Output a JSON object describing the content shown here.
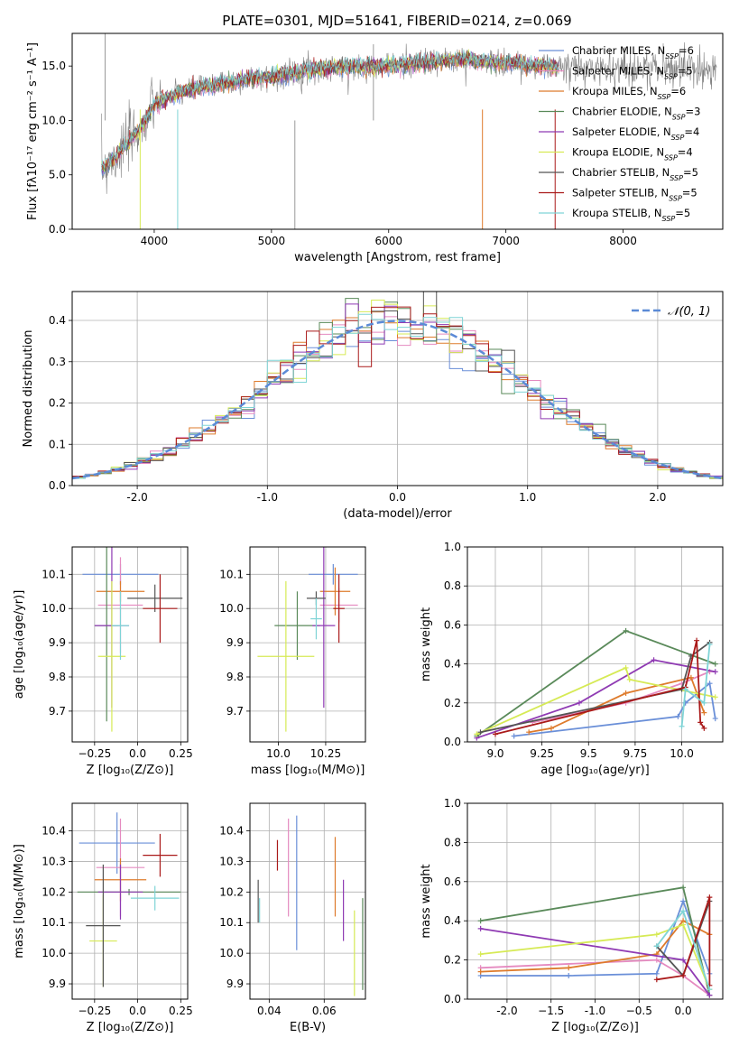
{
  "figure_title": "PLATE=0301, MJD=51641, FIBERID=0214, z=0.069",
  "colors": {
    "Chabrier MILES": "#6a8fd8",
    "Salpeter MILES": "#e58ac0",
    "Kroupa MILES": "#de7b2c",
    "Chabrier ELODIE": "#5a8a5a",
    "Salpeter ELODIE": "#8f3ab3",
    "Kroupa ELODIE": "#d6ea55",
    "Chabrier STELIB": "#555555",
    "Salpeter STELIB": "#aa1a1a",
    "Kroupa STELIB": "#7fd4d6",
    "data": "#808080"
  },
  "chart_data": [
    {
      "id": "spectrum",
      "type": "line",
      "title": "PLATE=0301, MJD=51641, FIBERID=0214, z=0.069",
      "xlabel": "wavelength [Angstrom, rest frame]",
      "ylabel": "Flux [fλ10⁻¹⁷ erg cm⁻² s⁻¹ A⁻¹]",
      "xlim": [
        3300,
        8850
      ],
      "ylim": [
        0,
        18
      ],
      "xticks": [
        4000,
        5000,
        6000,
        7000,
        8000
      ],
      "yticks": [
        0,
        5,
        10,
        15
      ],
      "legend_position": "top-right",
      "legend": [
        "Chabrier MILES, N_SSP=6",
        "Salpeter MILES, N_SSP=5",
        "Kroupa MILES, N_SSP=6",
        "Chabrier ELODIE, N_SSP=3",
        "Salpeter ELODIE, N_SSP=4",
        "Kroupa ELODIE, N_SSP=4",
        "Chabrier STELIB, N_SSP=5",
        "Salpeter STELIB, N_SSP=5",
        "Kroupa STELIB, N_SSP=5"
      ],
      "continuum": {
        "x": [
          3550,
          3700,
          3900,
          4000,
          4200,
          4500,
          4800,
          5000,
          5300,
          5600,
          6000,
          6300,
          6600,
          7000,
          7300,
          7450
        ],
        "y": [
          5.5,
          7.0,
          9.5,
          11.5,
          12.5,
          13.2,
          13.8,
          14.0,
          14.6,
          14.9,
          15.0,
          15.3,
          15.6,
          15.3,
          15.0,
          14.8
        ]
      },
      "model_x_range": [
        3550,
        7450
      ],
      "data_x_range": [
        3550,
        8800
      ]
    },
    {
      "id": "residuals",
      "type": "histogram",
      "xlabel": "(data-model)/error",
      "ylabel": "Normed distribution",
      "xlim": [
        -2.5,
        2.5
      ],
      "ylim": [
        0,
        0.47
      ],
      "xticks": [
        -2,
        -1,
        0,
        1,
        2
      ],
      "yticks": [
        0.0,
        0.1,
        0.2,
        0.3,
        0.4
      ],
      "legend": [
        "𝒩(0, 1)"
      ],
      "legend_position": "top-right",
      "bin_width": 0.1,
      "gaussian": {
        "mean": 0,
        "sigma": 1
      }
    },
    {
      "id": "age-vs-Z",
      "type": "errorbar",
      "xlabel": "Z [log₁₀(Z/Z⊙)]",
      "ylabel": "age  [log₁₀(age/yr)]",
      "xlim": [
        -0.38,
        0.29
      ],
      "ylim": [
        9.61,
        10.18
      ],
      "xticks": [
        -0.25,
        0.0,
        0.25
      ],
      "yticks": [
        9.7,
        9.8,
        9.9,
        10.0,
        10.1
      ],
      "points": [
        {
          "series": "Chabrier MILES",
          "x": -0.1,
          "xerr": 0.22,
          "y": 10.1,
          "yerr": 0.03
        },
        {
          "series": "Salpeter MILES",
          "x": -0.1,
          "xerr": 0.13,
          "y": 10.01,
          "yerr": 0.14
        },
        {
          "series": "Kroupa MILES",
          "x": -0.1,
          "xerr": 0.14,
          "y": 10.05,
          "yerr": 0.03
        },
        {
          "series": "Chabrier ELODIE",
          "x": -0.18,
          "xerr": 0.07,
          "y": 9.95,
          "yerr": 0.28
        },
        {
          "series": "Salpeter ELODIE",
          "x": -0.15,
          "xerr": 0.1,
          "y": 9.95,
          "yerr": 0.24
        },
        {
          "series": "Kroupa ELODIE",
          "x": -0.15,
          "xerr": 0.08,
          "y": 9.86,
          "yerr": 0.22
        },
        {
          "series": "Chabrier STELIB",
          "x": 0.1,
          "xerr": 0.16,
          "y": 10.03,
          "yerr": 0.04
        },
        {
          "series": "Salpeter STELIB",
          "x": 0.13,
          "xerr": 0.1,
          "y": 10.0,
          "yerr": 0.1
        },
        {
          "series": "Kroupa STELIB",
          "x": -0.1,
          "xerr": 0.05,
          "y": 9.95,
          "yerr": 0.1
        }
      ]
    },
    {
      "id": "age-vs-mass",
      "type": "errorbar",
      "xlabel": "mass [log₁₀(M/M⊙)]",
      "ylabel": "",
      "xlim": [
        9.85,
        10.46
      ],
      "ylim": [
        9.61,
        10.18
      ],
      "xticks": [
        10.0,
        10.25
      ],
      "yticks": [
        9.7,
        9.8,
        9.9,
        10.0,
        10.1
      ],
      "points": [
        {
          "series": "Chabrier MILES",
          "x": 10.29,
          "xerr": 0.13,
          "y": 10.1,
          "yerr": 0.03
        },
        {
          "series": "Salpeter MILES",
          "x": 10.32,
          "xerr": 0.1,
          "y": 10.01,
          "yerr": 0.05
        },
        {
          "series": "Kroupa MILES",
          "x": 10.3,
          "xerr": 0.08,
          "y": 10.05,
          "yerr": 0.07
        },
        {
          "series": "Chabrier ELODIE",
          "x": 10.1,
          "xerr": 0.12,
          "y": 9.95,
          "yerr": 0.1
        },
        {
          "series": "Salpeter ELODIE",
          "x": 10.24,
          "xerr": 0.06,
          "y": 9.95,
          "yerr": 0.24
        },
        {
          "series": "Kroupa ELODIE",
          "x": 10.04,
          "xerr": 0.15,
          "y": 9.86,
          "yerr": 0.22
        },
        {
          "series": "Chabrier STELIB",
          "x": 10.2,
          "xerr": 0.05,
          "y": 10.03,
          "yerr": 0.02
        },
        {
          "series": "Salpeter STELIB",
          "x": 10.32,
          "xerr": 0.03,
          "y": 10.0,
          "yerr": 0.1
        },
        {
          "series": "Kroupa STELIB",
          "x": 10.2,
          "xerr": 0.03,
          "y": 9.97,
          "yerr": 0.06
        }
      ]
    },
    {
      "id": "weight-vs-age",
      "type": "line",
      "xlabel": "age  [log₁₀(age/yr)]",
      "ylabel": "mass weight",
      "xlim": [
        8.85,
        10.22
      ],
      "ylim": [
        0,
        1
      ],
      "xticks": [
        9.0,
        9.25,
        9.5,
        9.75,
        10.0
      ],
      "yticks": [
        0.0,
        0.2,
        0.4,
        0.6,
        0.8,
        1.0
      ],
      "series": [
        {
          "name": "Chabrier MILES",
          "x": [
            9.1,
            9.98,
            10.02,
            10.15,
            10.18
          ],
          "y": [
            0.03,
            0.13,
            0.2,
            0.3,
            0.12
          ]
        },
        {
          "name": "Salpeter MILES",
          "x": [
            9.2,
            9.7,
            10.0,
            10.15
          ],
          "y": [
            0.1,
            0.2,
            0.3,
            0.36
          ]
        },
        {
          "name": "Kroupa MILES",
          "x": [
            9.18,
            9.3,
            9.7,
            10.05,
            10.12
          ],
          "y": [
            0.05,
            0.07,
            0.25,
            0.33,
            0.15
          ]
        },
        {
          "name": "Chabrier ELODIE",
          "x": [
            8.9,
            9.7,
            10.18
          ],
          "y": [
            0.03,
            0.57,
            0.4
          ]
        },
        {
          "name": "Salpeter ELODIE",
          "x": [
            8.9,
            9.45,
            9.85,
            10.18
          ],
          "y": [
            0.02,
            0.2,
            0.42,
            0.36
          ]
        },
        {
          "name": "Kroupa ELODIE",
          "x": [
            8.9,
            9.7,
            9.72,
            10.18
          ],
          "y": [
            0.04,
            0.38,
            0.32,
            0.23
          ]
        },
        {
          "name": "Chabrier STELIB",
          "x": [
            8.92,
            10.0,
            10.05,
            10.15
          ],
          "y": [
            0.05,
            0.27,
            0.44,
            0.51
          ]
        },
        {
          "name": "Salpeter STELIB",
          "x": [
            9.0,
            10.02,
            10.08,
            10.1,
            10.12
          ],
          "y": [
            0.04,
            0.28,
            0.52,
            0.1,
            0.07
          ]
        },
        {
          "name": "Kroupa STELIB",
          "x": [
            10.0,
            10.02,
            10.12,
            10.15
          ],
          "y": [
            0.08,
            0.27,
            0.2,
            0.5
          ]
        }
      ]
    },
    {
      "id": "mass-vs-Z",
      "type": "errorbar",
      "xlabel": "Z [log₁₀(Z/Z⊙)]",
      "ylabel": "mass [log₁₀(M/M⊙)]",
      "xlim": [
        -0.38,
        0.29
      ],
      "ylim": [
        9.85,
        10.49
      ],
      "xticks": [
        -0.25,
        0.0,
        0.25
      ],
      "yticks": [
        9.9,
        10.0,
        10.1,
        10.2,
        10.3,
        10.4
      ],
      "points": [
        {
          "series": "Chabrier MILES",
          "x": -0.12,
          "xerr": 0.22,
          "y": 10.36,
          "yerr": 0.1
        },
        {
          "series": "Salpeter MILES",
          "x": -0.1,
          "xerr": 0.14,
          "y": 10.28,
          "yerr": 0.16
        },
        {
          "series": "Kroupa MILES",
          "x": -0.1,
          "xerr": 0.15,
          "y": 10.24,
          "yerr": 0.07
        },
        {
          "series": "Chabrier ELODIE",
          "x": -0.05,
          "xerr": 0.3,
          "y": 10.2,
          "yerr": 0.01
        },
        {
          "series": "Salpeter ELODIE",
          "x": -0.1,
          "xerr": 0.13,
          "y": 10.2,
          "yerr": 0.09
        },
        {
          "series": "Kroupa ELODIE",
          "x": -0.2,
          "xerr": 0.08,
          "y": 10.04,
          "yerr": 0.15
        },
        {
          "series": "Chabrier STELIB",
          "x": -0.2,
          "xerr": 0.1,
          "y": 10.09,
          "yerr": 0.2
        },
        {
          "series": "Salpeter STELIB",
          "x": 0.13,
          "xerr": 0.1,
          "y": 10.32,
          "yerr": 0.07
        },
        {
          "series": "Kroupa STELIB",
          "x": 0.1,
          "xerr": 0.14,
          "y": 10.18,
          "yerr": 0.04
        }
      ]
    },
    {
      "id": "mass-vs-ebv",
      "type": "errorbar",
      "xlabel": "E(B-V)",
      "ylabel": "",
      "xlim": [
        0.033,
        0.075
      ],
      "ylim": [
        9.85,
        10.49
      ],
      "xticks": [
        0.04,
        0.06
      ],
      "yticks": [
        9.9,
        10.0,
        10.1,
        10.2,
        10.3,
        10.4
      ],
      "points": [
        {
          "series": "Chabrier MILES",
          "x": 0.05,
          "xerr": 0.0,
          "y": 10.23,
          "yerr": 0.22
        },
        {
          "series": "Salpeter MILES",
          "x": 0.047,
          "xerr": 0.0,
          "y": 10.28,
          "yerr": 0.16
        },
        {
          "series": "Kroupa MILES",
          "x": 0.064,
          "xerr": 0.0,
          "y": 10.25,
          "yerr": 0.13
        },
        {
          "series": "Chabrier ELODIE",
          "x": 0.074,
          "xerr": 0.0,
          "y": 10.03,
          "yerr": 0.15
        },
        {
          "series": "Salpeter ELODIE",
          "x": 0.067,
          "xerr": 0.0,
          "y": 10.14,
          "yerr": 0.1
        },
        {
          "series": "Kroupa ELODIE",
          "x": 0.071,
          "xerr": 0.0,
          "y": 10.0,
          "yerr": 0.14
        },
        {
          "series": "Chabrier STELIB",
          "x": 0.036,
          "xerr": 0.0,
          "y": 10.17,
          "yerr": 0.07
        },
        {
          "series": "Salpeter STELIB",
          "x": 0.043,
          "xerr": 0.0,
          "y": 10.32,
          "yerr": 0.05
        },
        {
          "series": "Kroupa STELIB",
          "x": 0.0365,
          "xerr": 0.0,
          "y": 10.14,
          "yerr": 0.04
        }
      ]
    },
    {
      "id": "weight-vs-Z",
      "type": "line",
      "xlabel": "Z [log₁₀(Z/Z⊙)]",
      "ylabel": "mass weight",
      "xlim": [
        -2.45,
        0.45
      ],
      "ylim": [
        0,
        1
      ],
      "xticks": [
        -2.0,
        -1.5,
        -1.0,
        -0.5,
        0.0
      ],
      "yticks": [
        0.0,
        0.2,
        0.4,
        0.6,
        0.8,
        1.0
      ],
      "series": [
        {
          "name": "Chabrier MILES",
          "x": [
            -2.3,
            -1.3,
            -0.3,
            0.0,
            0.3
          ],
          "y": [
            0.12,
            0.12,
            0.13,
            0.5,
            0.13
          ]
        },
        {
          "name": "Salpeter MILES",
          "x": [
            -2.3,
            -0.3,
            0.0,
            0.3
          ],
          "y": [
            0.16,
            0.2,
            0.12,
            0.02
          ]
        },
        {
          "name": "Kroupa MILES",
          "x": [
            -2.3,
            -1.3,
            -0.3,
            0.0,
            0.3
          ],
          "y": [
            0.14,
            0.16,
            0.23,
            0.4,
            0.33
          ]
        },
        {
          "name": "Chabrier ELODIE",
          "x": [
            -2.3,
            0.0,
            0.3
          ],
          "y": [
            0.4,
            0.57,
            0.02
          ]
        },
        {
          "name": "Salpeter ELODIE",
          "x": [
            -2.3,
            0.0,
            0.3
          ],
          "y": [
            0.36,
            0.2,
            0.02
          ]
        },
        {
          "name": "Kroupa ELODIE",
          "x": [
            -2.3,
            -0.3,
            0.0,
            0.3
          ],
          "y": [
            0.23,
            0.33,
            0.38,
            0.05
          ]
        },
        {
          "name": "Chabrier STELIB",
          "x": [
            -0.3,
            0.0,
            0.3
          ],
          "y": [
            0.27,
            0.12,
            0.5
          ]
        },
        {
          "name": "Salpeter STELIB",
          "x": [
            -0.3,
            0.0,
            0.3,
            0.3
          ],
          "y": [
            0.1,
            0.12,
            0.52,
            0.07
          ]
        },
        {
          "name": "Kroupa STELIB",
          "x": [
            -0.3,
            0.0,
            0.3
          ],
          "y": [
            0.27,
            0.45,
            0.05
          ]
        }
      ]
    }
  ]
}
